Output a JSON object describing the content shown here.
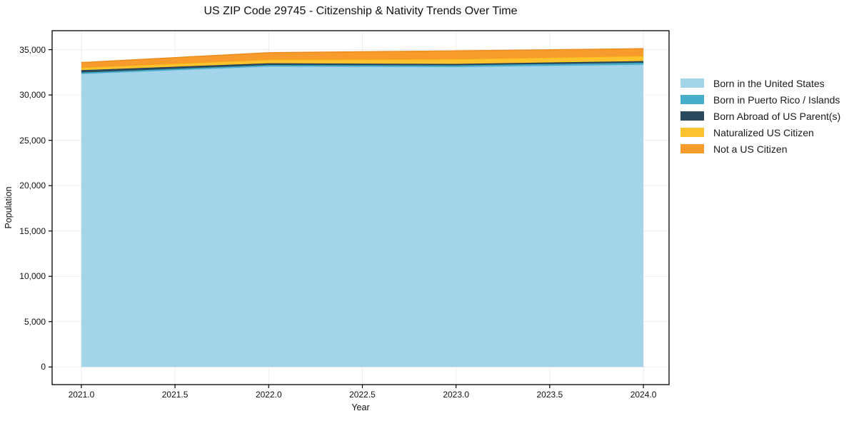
{
  "chart_data": {
    "type": "area",
    "stacked": true,
    "title": "US ZIP Code 29745 - Citizenship & Nativity Trends Over Time",
    "xlabel": "Year",
    "ylabel": "Population",
    "x": [
      2021,
      2022,
      2023,
      2024
    ],
    "series": [
      {
        "name": "Born in the United States",
        "color": "#a3d4ea",
        "edge_color": "#8cc7e2",
        "values": [
          32330,
          33150,
          33090,
          33350
        ]
      },
      {
        "name": "Born in Puerto Rico / Islands",
        "color": "#47adc8",
        "edge_color": "#3a9fbb",
        "values": [
          150,
          160,
          180,
          215
        ]
      },
      {
        "name": "Born Abroad of US Parent(s)",
        "color": "#2a4a5e",
        "edge_color": "#223d4e",
        "values": [
          260,
          190,
          160,
          180
        ]
      },
      {
        "name": "Naturalized US Citizen",
        "color": "#fcc32f",
        "edge_color": "#f5b414",
        "values": [
          270,
          390,
          520,
          550
        ]
      },
      {
        "name": "Not a US Citizen",
        "color": "#f89b2d",
        "edge_color": "#ee8a1d",
        "values": [
          570,
          780,
          920,
          820
        ]
      }
    ],
    "x_ticks": [
      "2021.0",
      "2021.5",
      "2022.0",
      "2022.5",
      "2023.0",
      "2023.5",
      "2024.0"
    ],
    "x_tick_values": [
      2021,
      2021.5,
      2022,
      2022.5,
      2023,
      2023.5,
      2024
    ],
    "y_ticks": [
      "0",
      "5,000",
      "10,000",
      "15,000",
      "20,000",
      "25,000",
      "30,000",
      "35,000"
    ],
    "y_tick_values": [
      0,
      5000,
      10000,
      15000,
      20000,
      25000,
      30000,
      35000
    ],
    "xlim": [
      2020.844,
      2024.137
    ],
    "ylim": [
      -1944,
      37093
    ],
    "grid": true,
    "legend_position": "right"
  },
  "colors": {
    "background": "#ffffff",
    "grid": "#ececec",
    "axis": "#000000",
    "text": "#1a1a1a"
  }
}
